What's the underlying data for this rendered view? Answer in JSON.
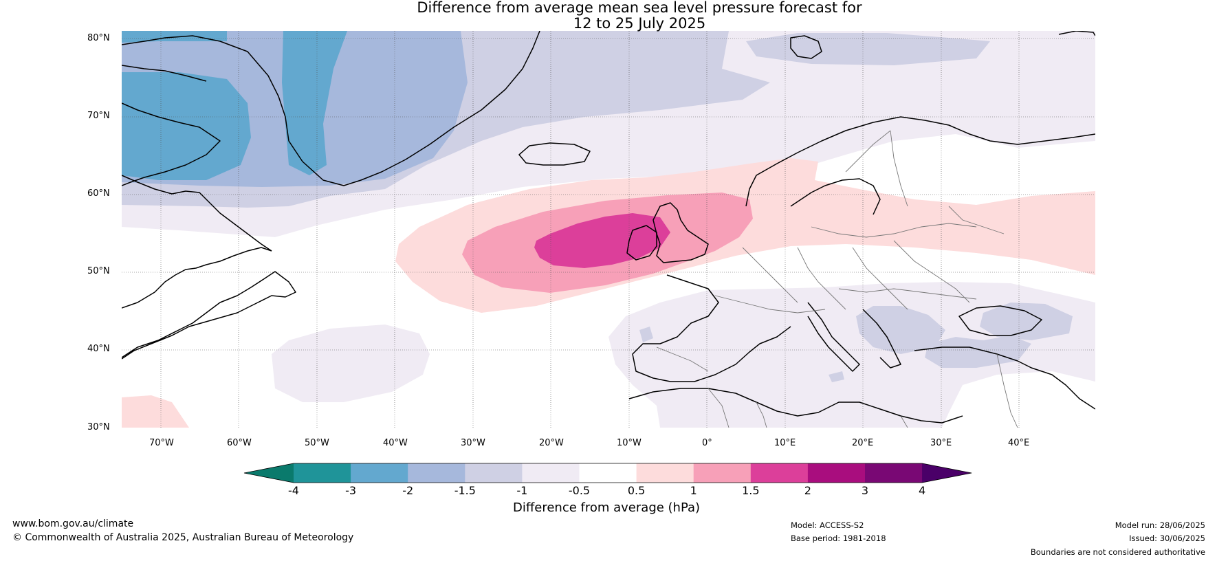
{
  "title": {
    "line1": "Difference from average mean sea level pressure forecast for",
    "line2": "12 to 25 July 2025"
  },
  "axes": {
    "lat_labels": [
      "80°N",
      "70°N",
      "60°N",
      "50°N",
      "40°N",
      "30°N"
    ],
    "lon_labels": [
      "70°W",
      "60°W",
      "50°W",
      "40°W",
      "30°W",
      "20°W",
      "10°W",
      "0°",
      "10°E",
      "20°E",
      "30°E",
      "40°E"
    ]
  },
  "colorbar": {
    "title": "Difference from average (hPa)",
    "ticks": [
      "-4",
      "-3",
      "-2",
      "-1.5",
      "-1",
      "-0.5",
      "0.5",
      "1",
      "1.5",
      "2",
      "3",
      "4"
    ],
    "colors": [
      "#0a7a6c",
      "#1f9499",
      "#63a8cf",
      "#a6b8dc",
      "#cfd0e4",
      "#f0ebf4",
      "#ffffff",
      "#fddcdc",
      "#f7a0b8",
      "#dc3f9a",
      "#a90d7e",
      "#790874",
      "#4a0068"
    ]
  },
  "footer": {
    "site": "www.bom.gov.au/climate",
    "copyright": "© Commonwealth of Australia 2025, Australian Bureau of Meteorology",
    "model": "Model: ACCESS-S2",
    "base_period": "Base period: 1981-2018",
    "model_run": "Model run: 28/06/2025",
    "issued": "Issued: 30/06/2025",
    "disclaimer": "Boundaries are not considered authoritative"
  }
}
